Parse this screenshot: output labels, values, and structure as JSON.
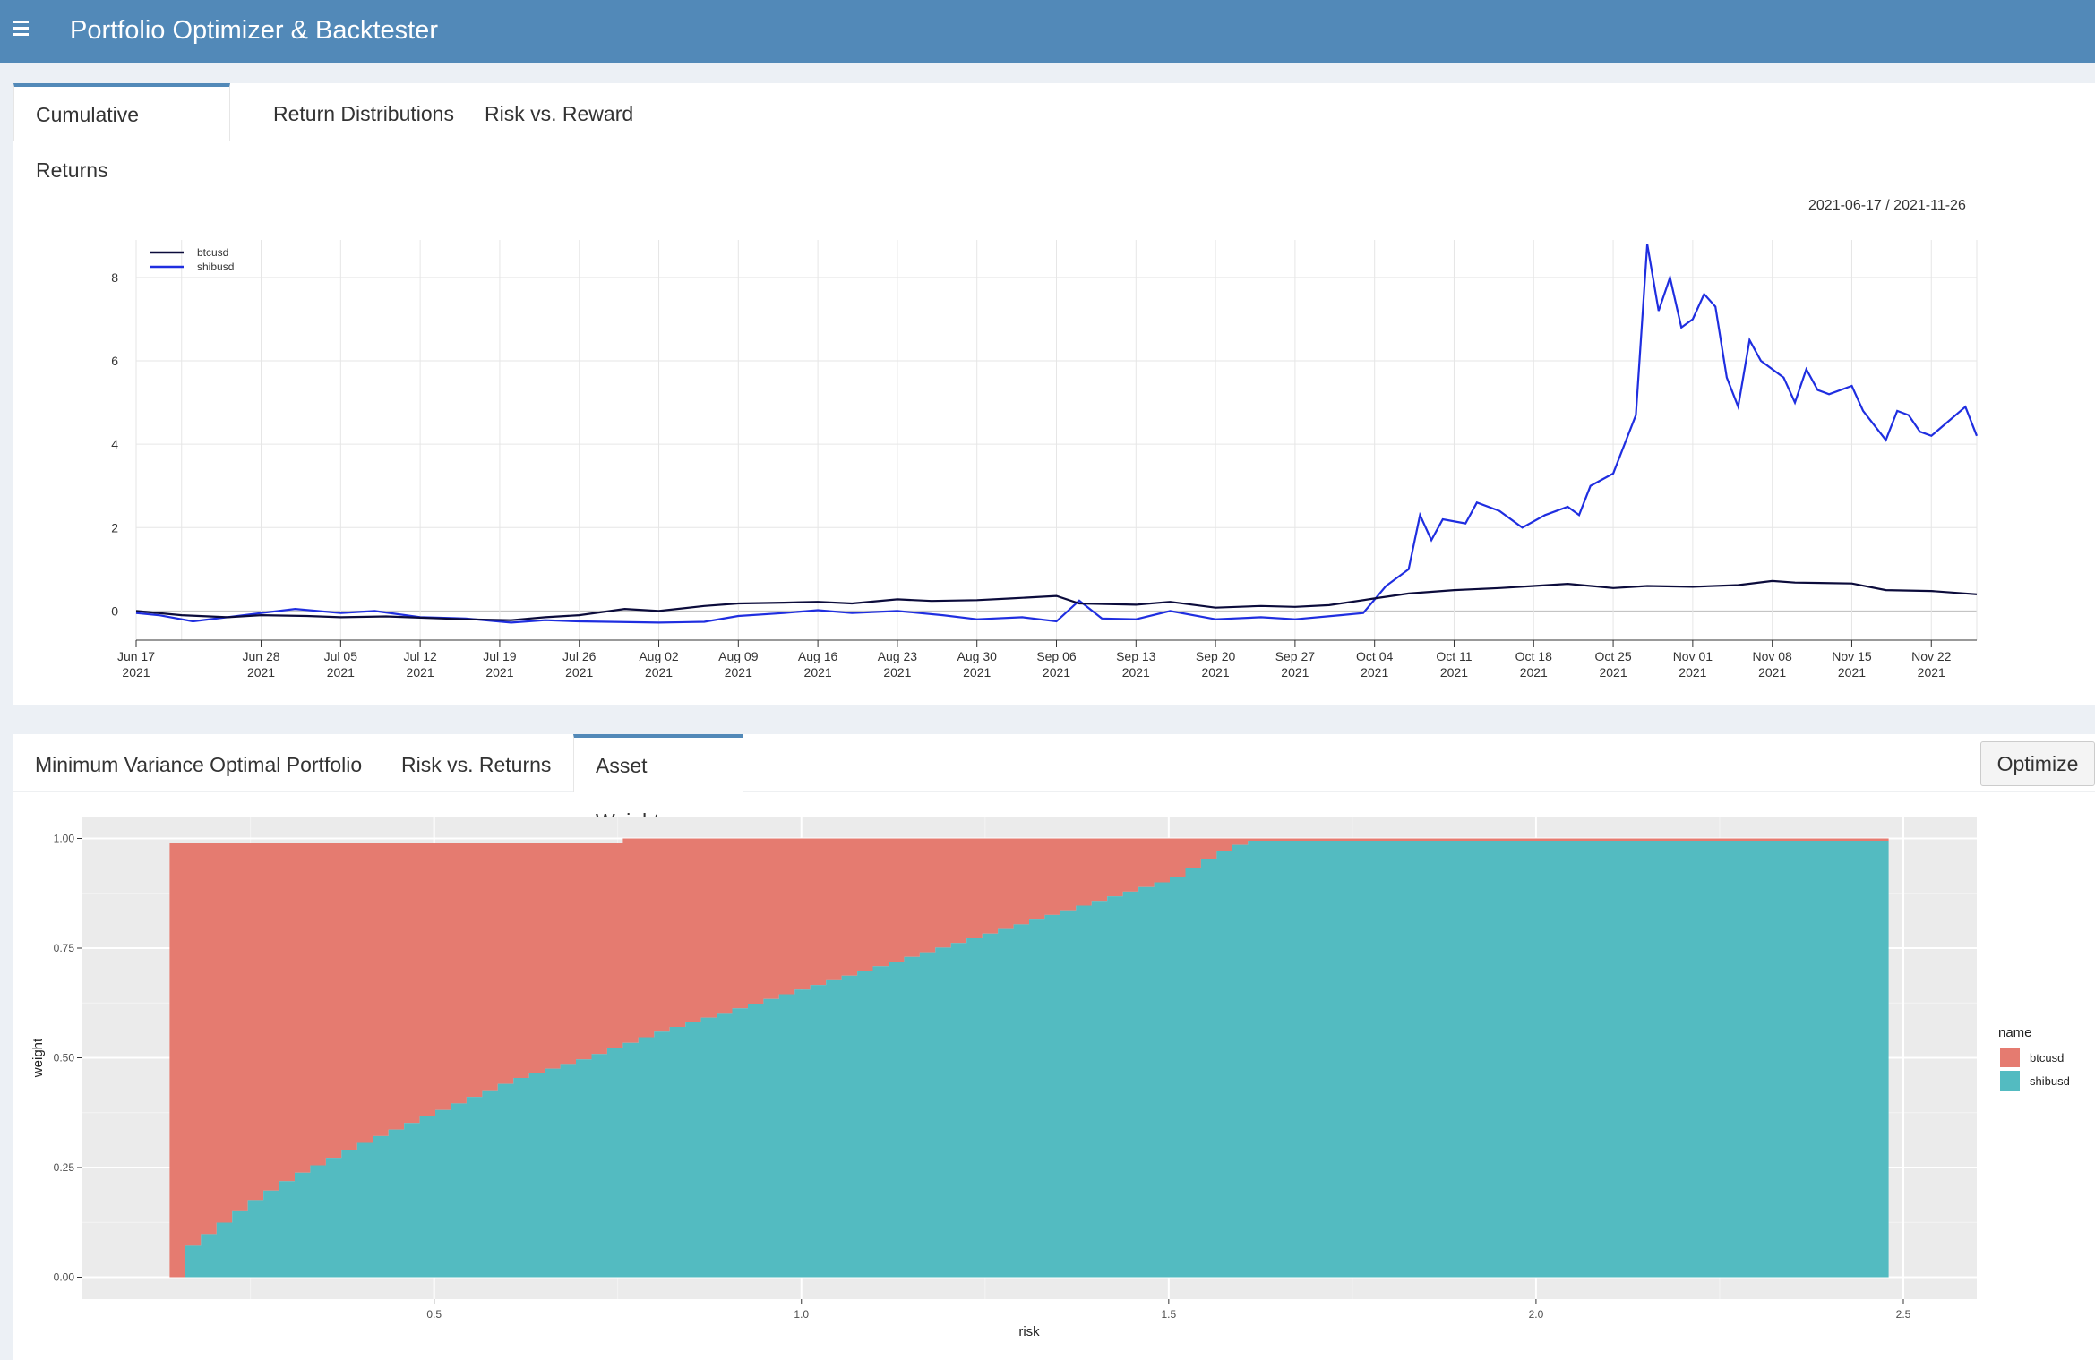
{
  "app": {
    "title": "Portfolio Optimizer & Backtester"
  },
  "top_tabs": [
    {
      "label": "Cumulative Returns",
      "active": true
    },
    {
      "label": "Return Distributions",
      "active": false
    },
    {
      "label": "Risk vs. Reward",
      "active": false
    }
  ],
  "bottom_tabs": [
    {
      "label": "Minimum Variance Optimal Portfolio",
      "active": false
    },
    {
      "label": "Risk vs. Returns",
      "active": false
    },
    {
      "label": "Asset Weights",
      "active": true
    }
  ],
  "optimize_label": "Optimize",
  "colors": {
    "header": "#5289b8",
    "btc_line": "#0b0b3b",
    "shib_line": "#1f2ee0",
    "btc_area": "#e57b70",
    "shib_area": "#53bbc1"
  },
  "chart_data": [
    {
      "type": "line",
      "title": "",
      "date_range": "2021-06-17 / 2021-11-26",
      "ylim": [
        -0.7,
        8.9
      ],
      "y_ticks": [
        "8",
        "6",
        "4",
        "2",
        "0"
      ],
      "x_ticks": [
        "Jun 17\n2021",
        "Jun 28\n2021",
        "Jul 05\n2021",
        "Jul 12\n2021",
        "Jul 19\n2021",
        "Jul 26\n2021",
        "Aug 02\n2021",
        "Aug 09\n2021",
        "Aug 16\n2021",
        "Aug 23\n2021",
        "Aug 30\n2021",
        "Sep 06\n2021",
        "Sep 13\n2021",
        "Sep 20\n2021",
        "Sep 27\n2021",
        "Oct 04\n2021",
        "Oct 11\n2021",
        "Oct 18\n2021",
        "Oct 25\n2021",
        "Nov 01\n2021",
        "Nov 08\n2021",
        "Nov 15\n2021",
        "Nov 22\n2021"
      ],
      "grid": true,
      "legend_position": "top-left",
      "series": [
        {
          "name": "btcusd",
          "points": [
            [
              "2021-06-17",
              0.0
            ],
            [
              "2021-06-21",
              -0.1
            ],
            [
              "2021-06-25",
              -0.15
            ],
            [
              "2021-06-28",
              -0.1
            ],
            [
              "2021-07-02",
              -0.12
            ],
            [
              "2021-07-05",
              -0.15
            ],
            [
              "2021-07-09",
              -0.13
            ],
            [
              "2021-07-12",
              -0.16
            ],
            [
              "2021-07-16",
              -0.2
            ],
            [
              "2021-07-20",
              -0.22
            ],
            [
              "2021-07-23",
              -0.15
            ],
            [
              "2021-07-26",
              -0.1
            ],
            [
              "2021-07-30",
              0.05
            ],
            [
              "2021-08-02",
              0.0
            ],
            [
              "2021-08-06",
              0.12
            ],
            [
              "2021-08-09",
              0.18
            ],
            [
              "2021-08-13",
              0.2
            ],
            [
              "2021-08-16",
              0.22
            ],
            [
              "2021-08-19",
              0.18
            ],
            [
              "2021-08-23",
              0.28
            ],
            [
              "2021-08-26",
              0.24
            ],
            [
              "2021-08-30",
              0.26
            ],
            [
              "2021-09-02",
              0.3
            ],
            [
              "2021-09-06",
              0.36
            ],
            [
              "2021-09-08",
              0.18
            ],
            [
              "2021-09-13",
              0.15
            ],
            [
              "2021-09-16",
              0.22
            ],
            [
              "2021-09-20",
              0.08
            ],
            [
              "2021-09-24",
              0.12
            ],
            [
              "2021-09-27",
              0.1
            ],
            [
              "2021-09-30",
              0.14
            ],
            [
              "2021-10-04",
              0.3
            ],
            [
              "2021-10-07",
              0.42
            ],
            [
              "2021-10-11",
              0.5
            ],
            [
              "2021-10-15",
              0.55
            ],
            [
              "2021-10-18",
              0.6
            ],
            [
              "2021-10-21",
              0.65
            ],
            [
              "2021-10-25",
              0.55
            ],
            [
              "2021-10-28",
              0.6
            ],
            [
              "2021-11-01",
              0.58
            ],
            [
              "2021-11-05",
              0.62
            ],
            [
              "2021-11-08",
              0.72
            ],
            [
              "2021-11-10",
              0.68
            ],
            [
              "2021-11-15",
              0.66
            ],
            [
              "2021-11-18",
              0.5
            ],
            [
              "2021-11-22",
              0.48
            ],
            [
              "2021-11-26",
              0.4
            ]
          ]
        },
        {
          "name": "shibusd",
          "points": [
            [
              "2021-06-17",
              -0.05
            ],
            [
              "2021-06-19",
              -0.1
            ],
            [
              "2021-06-22",
              -0.25
            ],
            [
              "2021-06-25",
              -0.15
            ],
            [
              "2021-06-28",
              -0.05
            ],
            [
              "2021-07-01",
              0.05
            ],
            [
              "2021-07-05",
              -0.05
            ],
            [
              "2021-07-08",
              0.0
            ],
            [
              "2021-07-12",
              -0.15
            ],
            [
              "2021-07-16",
              -0.18
            ],
            [
              "2021-07-20",
              -0.28
            ],
            [
              "2021-07-23",
              -0.22
            ],
            [
              "2021-07-26",
              -0.25
            ],
            [
              "2021-08-02",
              -0.28
            ],
            [
              "2021-08-06",
              -0.26
            ],
            [
              "2021-08-09",
              -0.12
            ],
            [
              "2021-08-13",
              -0.05
            ],
            [
              "2021-08-16",
              0.02
            ],
            [
              "2021-08-19",
              -0.05
            ],
            [
              "2021-08-23",
              0.0
            ],
            [
              "2021-08-27",
              -0.1
            ],
            [
              "2021-08-30",
              -0.2
            ],
            [
              "2021-09-03",
              -0.15
            ],
            [
              "2021-09-06",
              -0.25
            ],
            [
              "2021-09-08",
              0.25
            ],
            [
              "2021-09-10",
              -0.18
            ],
            [
              "2021-09-13",
              -0.2
            ],
            [
              "2021-09-16",
              0.0
            ],
            [
              "2021-09-20",
              -0.2
            ],
            [
              "2021-09-24",
              -0.15
            ],
            [
              "2021-09-27",
              -0.2
            ],
            [
              "2021-10-01",
              -0.1
            ],
            [
              "2021-10-03",
              -0.05
            ],
            [
              "2021-10-05",
              0.6
            ],
            [
              "2021-10-07",
              1.0
            ],
            [
              "2021-10-08",
              2.3
            ],
            [
              "2021-10-09",
              1.7
            ],
            [
              "2021-10-10",
              2.2
            ],
            [
              "2021-10-12",
              2.1
            ],
            [
              "2021-10-13",
              2.6
            ],
            [
              "2021-10-15",
              2.4
            ],
            [
              "2021-10-17",
              2.0
            ],
            [
              "2021-10-19",
              2.3
            ],
            [
              "2021-10-21",
              2.5
            ],
            [
              "2021-10-22",
              2.3
            ],
            [
              "2021-10-23",
              3.0
            ],
            [
              "2021-10-25",
              3.3
            ],
            [
              "2021-10-27",
              4.7
            ],
            [
              "2021-10-28",
              8.8
            ],
            [
              "2021-10-29",
              7.2
            ],
            [
              "2021-10-30",
              8.0
            ],
            [
              "2021-10-31",
              6.8
            ],
            [
              "2021-11-01",
              7.0
            ],
            [
              "2021-11-02",
              7.6
            ],
            [
              "2021-11-03",
              7.3
            ],
            [
              "2021-11-04",
              5.6
            ],
            [
              "2021-11-05",
              4.9
            ],
            [
              "2021-11-06",
              6.5
            ],
            [
              "2021-11-07",
              6.0
            ],
            [
              "2021-11-09",
              5.6
            ],
            [
              "2021-11-10",
              5.0
            ],
            [
              "2021-11-11",
              5.8
            ],
            [
              "2021-11-12",
              5.3
            ],
            [
              "2021-11-13",
              5.2
            ],
            [
              "2021-11-15",
              5.4
            ],
            [
              "2021-11-16",
              4.8
            ],
            [
              "2021-11-18",
              4.1
            ],
            [
              "2021-11-19",
              4.8
            ],
            [
              "2021-11-20",
              4.7
            ],
            [
              "2021-11-21",
              4.3
            ],
            [
              "2021-11-22",
              4.2
            ],
            [
              "2021-11-25",
              4.9
            ],
            [
              "2021-11-26",
              4.2
            ]
          ]
        }
      ]
    },
    {
      "type": "area",
      "title": "",
      "xlabel": "risk",
      "ylabel": "weight",
      "xlim": [
        0.02,
        2.6
      ],
      "ylim": [
        -0.05,
        1.05
      ],
      "x_ticks": [
        "0.5",
        "1.0",
        "1.5",
        "2.0",
        "2.5"
      ],
      "y_ticks": [
        "1.00",
        "0.75",
        "0.50",
        "0.25",
        "0.00"
      ],
      "risk_range": [
        0.14,
        2.48
      ],
      "legend_title": "name",
      "series": [
        {
          "name": "btcusd",
          "description": "upper stacked area"
        },
        {
          "name": "shibusd",
          "description": "lower stacked area"
        }
      ],
      "shibusd_weight_curve": [
        [
          0.14,
          0.0
        ],
        [
          0.16,
          0.07
        ],
        [
          0.2,
          0.12
        ],
        [
          0.25,
          0.18
        ],
        [
          0.3,
          0.23
        ],
        [
          0.4,
          0.31
        ],
        [
          0.5,
          0.38
        ],
        [
          0.6,
          0.45
        ],
        [
          0.7,
          0.5
        ],
        [
          0.8,
          0.56
        ],
        [
          0.9,
          0.61
        ],
        [
          1.0,
          0.66
        ],
        [
          1.1,
          0.71
        ],
        [
          1.2,
          0.76
        ],
        [
          1.3,
          0.81
        ],
        [
          1.4,
          0.86
        ],
        [
          1.5,
          0.91
        ],
        [
          1.55,
          0.96
        ],
        [
          1.6,
          0.995
        ],
        [
          2.48,
          0.995
        ]
      ],
      "total_weight_curve": [
        [
          0.14,
          0.99
        ],
        [
          0.72,
          0.99
        ],
        [
          0.75,
          1.0
        ],
        [
          2.48,
          1.01
        ]
      ]
    }
  ],
  "legends": {
    "line": [
      {
        "name": "btcusd"
      },
      {
        "name": "shibusd"
      }
    ],
    "area_title": "name",
    "area": [
      {
        "name": "btcusd"
      },
      {
        "name": "shibusd"
      }
    ]
  }
}
